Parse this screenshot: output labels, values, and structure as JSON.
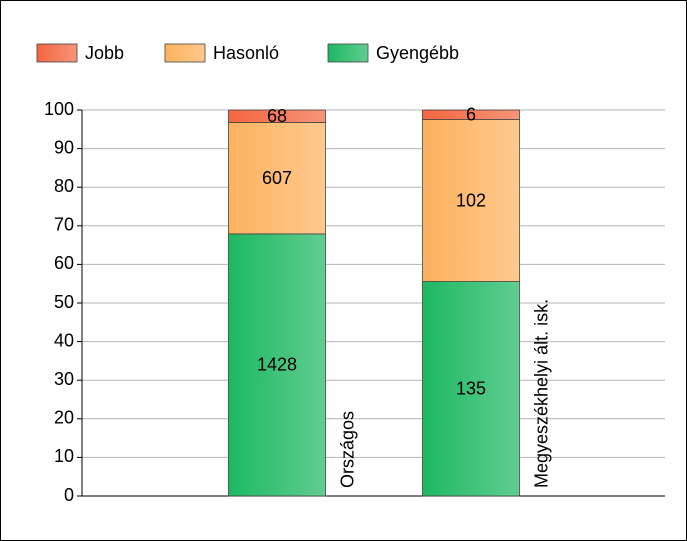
{
  "chart_data": {
    "type": "bar",
    "stacking": "percent",
    "categories": [
      "Országos",
      "Megyeszékhelyi ált. isk."
    ],
    "series": [
      {
        "name": "Gyengébb",
        "color": "#1db862",
        "values": [
          1428,
          135
        ]
      },
      {
        "name": "Hasonló",
        "color": "#fdb25e",
        "values": [
          607,
          102
        ]
      },
      {
        "name": "Jobb",
        "color": "#f4663f",
        "values": [
          68,
          6
        ]
      }
    ],
    "legend_order": [
      2,
      1,
      0
    ],
    "ylim": [
      0,
      100
    ],
    "yticks": [
      0,
      10,
      20,
      30,
      40,
      50,
      60,
      70,
      80,
      90,
      100
    ],
    "grid": true
  }
}
